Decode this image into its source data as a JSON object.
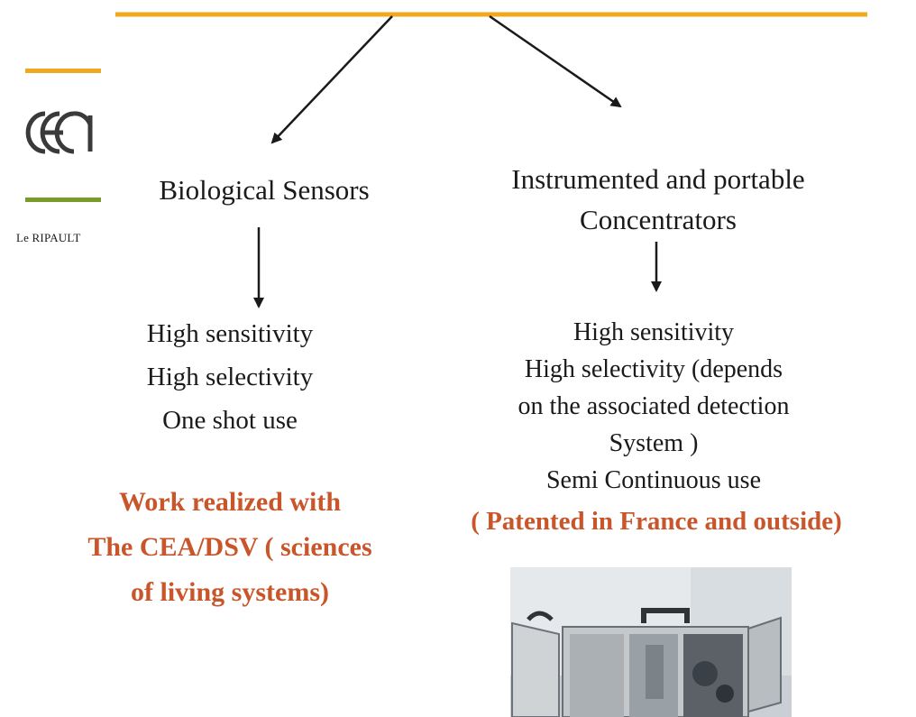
{
  "logo": {
    "name": "cea",
    "subtitle": "Le RIPAULT",
    "colors": {
      "top_line": "#f0a81c",
      "bottom_line": "#7a9a2a",
      "mark": "#3a3a3a"
    }
  },
  "left_branch": {
    "title": "Biological Sensors",
    "properties": [
      "High sensitivity",
      "High selectivity",
      "One shot use"
    ],
    "note": [
      "Work realized with",
      "The CEA/DSV ( sciences",
      "of living systems)"
    ]
  },
  "right_branch": {
    "title": [
      "Instrumented and portable",
      "Concentrators"
    ],
    "properties": [
      "High sensitivity",
      "High selectivity (depends",
      "on the associated detection",
      "System )",
      "Semi Continuous use"
    ],
    "note": "( Patented in France and outside)"
  },
  "photo": {
    "subject": "portable-concentrator-photo"
  },
  "colors": {
    "accent_line": "#f0a81c",
    "note_text": "#c8562a",
    "text": "#1a1a1a"
  }
}
